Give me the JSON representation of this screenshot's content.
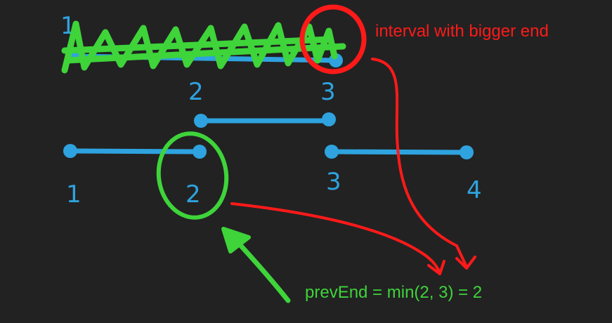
{
  "colors": {
    "background": "#222222",
    "interval": "#2ea3df",
    "green": "#3ed43a",
    "red": "#ff1a1a"
  },
  "number_labels": {
    "top_left": "1",
    "top_mid": "2",
    "top_right": "3",
    "bottom_1": "1",
    "bottom_2": "2",
    "bottom_3": "3",
    "bottom_4": "4"
  },
  "annotations": {
    "bigger_end": "interval with bigger end",
    "prev_end": "prevEnd = min(2, 3) = 2"
  }
}
